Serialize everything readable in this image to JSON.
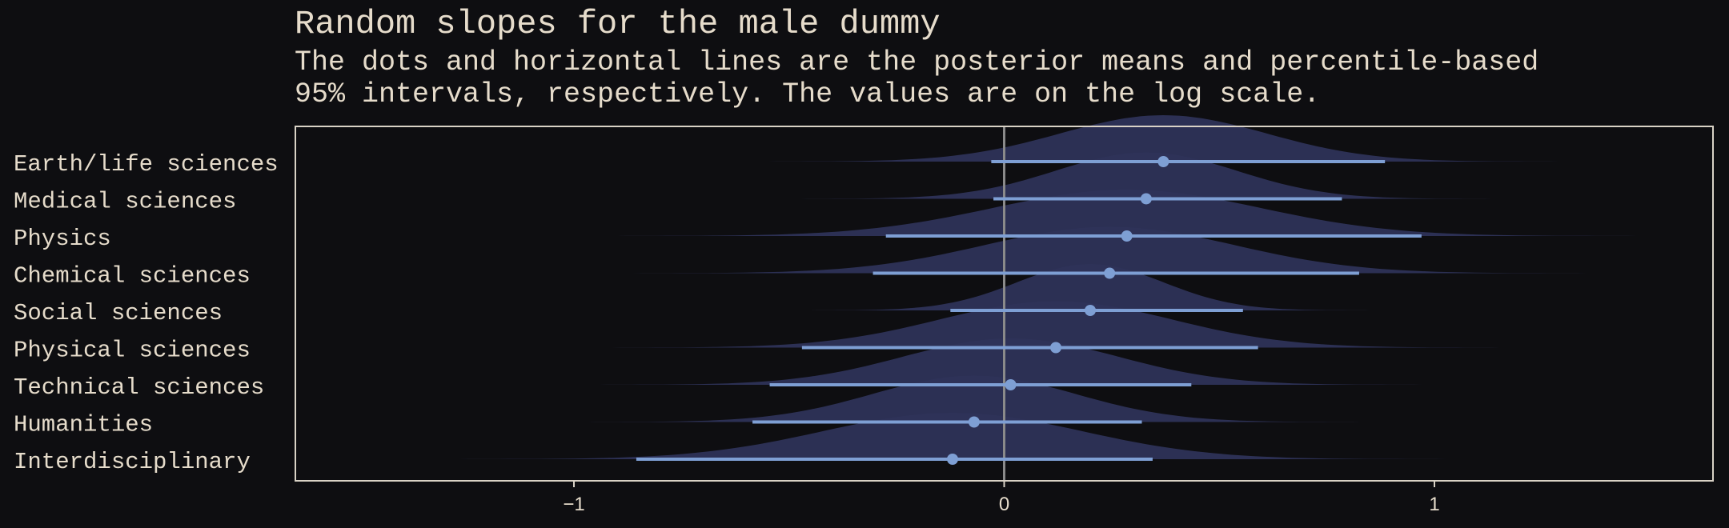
{
  "chart_data": {
    "type": "ridgeline-interval",
    "title": "Random slopes for the male dummy",
    "subtitle": [
      "The dots and horizontal lines are the posterior means and percentile-based",
      "95% intervals, respectively. The values are on the log scale."
    ],
    "xlabel": "",
    "ylabel": "",
    "xlim": [
      -1.65,
      1.65
    ],
    "xticks": [
      -1,
      0,
      1
    ],
    "xtick_labels": [
      "−1",
      "0",
      "1"
    ],
    "reference_line_x": 0,
    "grid": false,
    "categories": [
      "Earth/life sciences",
      "Medical sciences",
      "Physics",
      "Chemical sciences",
      "Social sciences",
      "Physical sciences",
      "Technical sciences",
      "Humanities",
      "Interdisciplinary"
    ],
    "means": [
      0.37,
      0.33,
      0.285,
      0.245,
      0.2,
      0.12,
      0.015,
      -0.07,
      -0.12
    ],
    "lower": [
      -0.03,
      -0.025,
      -0.275,
      -0.305,
      -0.125,
      -0.47,
      -0.545,
      -0.585,
      -0.855
    ],
    "upper": [
      0.885,
      0.785,
      0.97,
      0.825,
      0.555,
      0.59,
      0.435,
      0.32,
      0.345
    ],
    "density_sd": [
      0.24,
      0.21,
      0.31,
      0.29,
      0.17,
      0.27,
      0.25,
      0.235,
      0.3
    ],
    "colors": {
      "background": "#0e0e11",
      "text": "#e6dccb",
      "frame": "#d9d2c6",
      "density": "#2e3358",
      "interval": "#7e9fd4",
      "reference": "#8a8a8a"
    }
  }
}
